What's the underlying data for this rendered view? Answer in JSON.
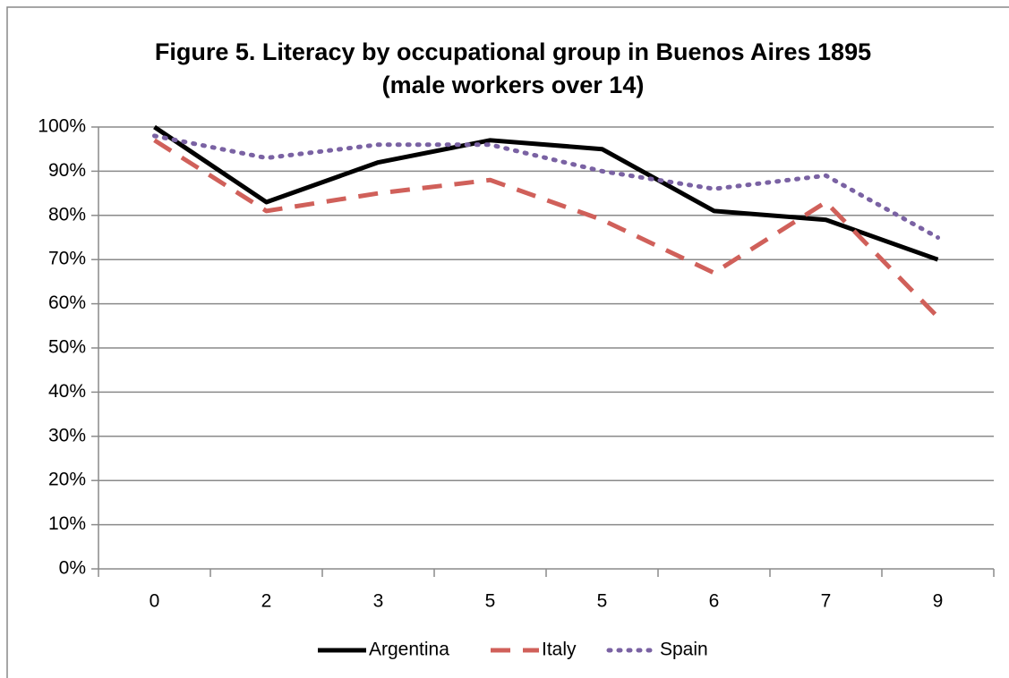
{
  "chart_data": {
    "type": "line",
    "title": [
      "Figure 5. Literacy by occupational group in Buenos Aires 1895",
      "(male workers over 14)"
    ],
    "categories": [
      "0",
      "2",
      "3",
      "5",
      "5",
      "6",
      "7",
      "9"
    ],
    "series": [
      {
        "name": "Argentina",
        "color": "#000000",
        "style": "solid",
        "values": [
          100,
          83,
          92,
          97,
          95,
          81,
          79,
          70
        ]
      },
      {
        "name": "Italy",
        "color": "#d0605a",
        "style": "dashed",
        "values": [
          97,
          81,
          85,
          88,
          79,
          67,
          83,
          57
        ]
      },
      {
        "name": "Spain",
        "color": "#7a62a3",
        "style": "dotted",
        "values": [
          98,
          93,
          96,
          96,
          90,
          86,
          89,
          75
        ]
      }
    ],
    "ylim": [
      0,
      100
    ],
    "yticks": [
      {
        "value": 0,
        "label": "0%"
      },
      {
        "value": 10,
        "label": "10%"
      },
      {
        "value": 20,
        "label": "20%"
      },
      {
        "value": 30,
        "label": "30%"
      },
      {
        "value": 40,
        "label": "40%"
      },
      {
        "value": 50,
        "label": "50%"
      },
      {
        "value": 60,
        "label": "60%"
      },
      {
        "value": 70,
        "label": "70%"
      },
      {
        "value": 80,
        "label": "80%"
      },
      {
        "value": 90,
        "label": "90%"
      },
      {
        "value": 100,
        "label": "100%"
      }
    ],
    "grid": true,
    "legend": "bottom"
  }
}
